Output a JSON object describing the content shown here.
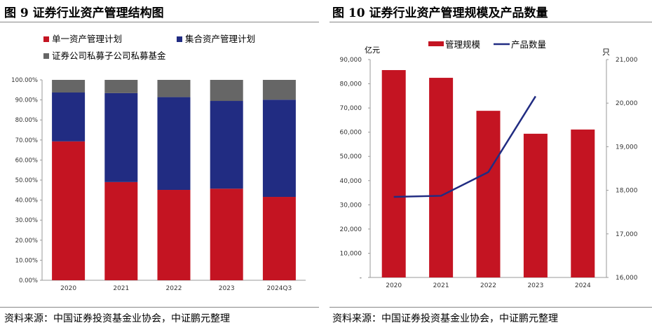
{
  "left": {
    "title": "图 9  证券行业资产管理结构图",
    "source": "资料来源：中国证券投资基金业协会，中证鹏元整理"
  },
  "right": {
    "title": "图 10  证券行业资产管理规模及产品数量",
    "source": "资料来源：中国证券投资基金业协会，中证鹏元整理"
  },
  "chart_data": [
    {
      "type": "bar",
      "stacked": true,
      "categories": [
        "2020",
        "2021",
        "2022",
        "2023",
        "2024Q3"
      ],
      "series": [
        {
          "name": "单一资产管理计划",
          "color": "#c41422",
          "values": [
            69.3,
            49.0,
            45.1,
            45.7,
            41.6
          ]
        },
        {
          "name": "集合资产管理计划",
          "color": "#212c82",
          "values": [
            24.4,
            44.4,
            46.3,
            43.8,
            48.5
          ]
        },
        {
          "name": "证券公司私募子公司私募基金",
          "color": "#666666",
          "values": [
            6.3,
            6.6,
            8.6,
            10.5,
            9.9
          ]
        }
      ],
      "ylim": [
        0,
        100
      ],
      "yticks": [
        "0.00%",
        "10.00%",
        "20.00%",
        "30.00%",
        "40.00%",
        "50.00%",
        "60.00%",
        "70.00%",
        "80.00%",
        "90.00%",
        "100.00%"
      ],
      "legend": "top-left",
      "grid": false
    },
    {
      "type": "bar+line",
      "categories": [
        "2020",
        "2021",
        "2022",
        "2023",
        "2024"
      ],
      "series": [
        {
          "name": "管理规模",
          "type": "bar",
          "axis": "left",
          "color": "#c41422",
          "values": [
            85650,
            82460,
            68830,
            59360,
            61100
          ]
        },
        {
          "name": "产品数量",
          "type": "line",
          "axis": "right",
          "color": "#212c82",
          "values": [
            17848,
            17874,
            18417,
            20157,
            null
          ]
        }
      ],
      "ylabel_left": "亿元",
      "ylabel_right": "只",
      "ylim_left": [
        0,
        90000
      ],
      "ylim_right": [
        16000,
        21000
      ],
      "yticks_left": [
        "-",
        "10,000",
        "20,000",
        "30,000",
        "40,000",
        "50,000",
        "60,000",
        "70,000",
        "80,000",
        "90,000"
      ],
      "yticks_right": [
        "16,000",
        "17,000",
        "18,000",
        "19,000",
        "20,000",
        "21,000"
      ],
      "legend": "top",
      "grid": false
    }
  ]
}
